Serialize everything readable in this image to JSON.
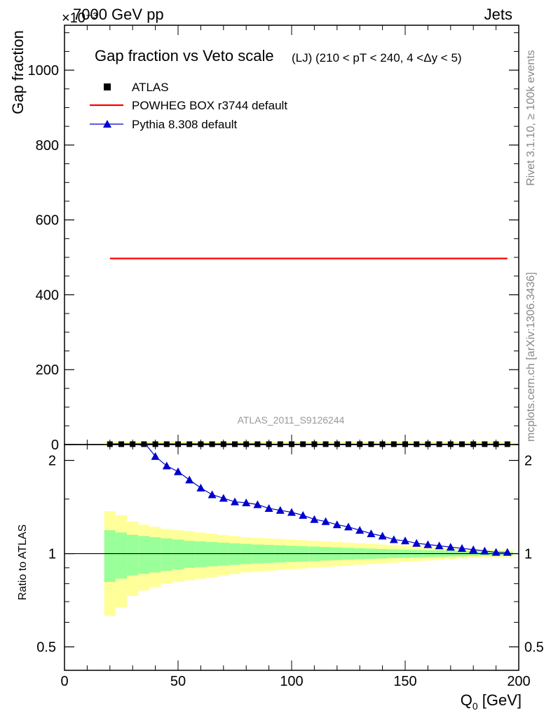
{
  "header": {
    "energy_label": "7000 GeV pp",
    "exponent_label": "×10⁻³",
    "process_label": "Jets",
    "side_rivet": "Rivet 3.1.10, ≥ 100k events",
    "side_mcplots": "mcplots.cern.ch [arXiv:1306.3436]",
    "analysis_id": "ATLAS_2011_S9126244"
  },
  "chart_data": [
    {
      "type": "line",
      "title": "Gap fraction vs Veto scale",
      "subtitle": "(LJ) (210 < pT < 240, 4 <Δy < 5)",
      "xlabel": "",
      "ylabel": "Gap fraction",
      "xlim": [
        0,
        200
      ],
      "ylim": [
        0,
        1120
      ],
      "y_scale_note": "×10⁻³",
      "yticks": [
        0,
        200,
        400,
        600,
        800,
        1000
      ],
      "legend_placement": "top-left",
      "series": [
        {
          "name": "ATLAS",
          "style": "markers",
          "color": "#000000",
          "x": [
            20,
            25,
            30,
            35,
            40,
            45,
            50,
            55,
            60,
            65,
            70,
            75,
            80,
            85,
            90,
            95,
            100,
            105,
            110,
            115,
            120,
            125,
            130,
            135,
            140,
            145,
            150,
            155,
            160,
            165,
            170,
            175,
            180,
            185,
            190,
            195
          ],
          "y": [
            1,
            1,
            1,
            1,
            1,
            1,
            1,
            1,
            1,
            1,
            1,
            1,
            1,
            1,
            1,
            1,
            1,
            1,
            1,
            1,
            1,
            1,
            1,
            1,
            1,
            1,
            1,
            1,
            1,
            1,
            1,
            1,
            1,
            1,
            1,
            1
          ]
        },
        {
          "name": "POWHEG BOX r3744 default",
          "style": "line",
          "color": "#ff0000",
          "x": [
            20,
            195
          ],
          "y": [
            497,
            497
          ]
        },
        {
          "name": "Pythia 8.308 default",
          "style": "line-triangles",
          "color": "#0000cc",
          "x": [
            20,
            25,
            30,
            35,
            40,
            45,
            50,
            55,
            60,
            65,
            70,
            75,
            80,
            85,
            90,
            95,
            100,
            105,
            110,
            115,
            120,
            125,
            130,
            135,
            140,
            145,
            150,
            155,
            160,
            165,
            170,
            175,
            180,
            185,
            190,
            195
          ],
          "y": [
            2,
            2,
            2,
            2,
            2,
            2,
            2,
            2,
            2,
            2,
            2,
            2,
            2,
            2,
            1,
            1,
            1,
            1,
            1,
            1,
            1,
            1,
            1,
            1,
            1,
            1,
            1,
            1,
            1,
            1,
            1,
            1,
            1,
            1,
            1,
            1
          ]
        }
      ]
    },
    {
      "type": "line",
      "title": "",
      "xlabel": "Q",
      "xlabel_sub": "0",
      "xlabel_unit": " [GeV]",
      "ylabel": "Ratio to ATLAS",
      "xlim": [
        0,
        200
      ],
      "ylim": [
        0.42,
        2.25
      ],
      "y_scale": "log",
      "xticks": [
        0,
        50,
        100,
        150,
        200
      ],
      "yticks": [
        0.5,
        1,
        2
      ],
      "reference_line": 1,
      "bands": {
        "x_edges": [
          17.5,
          22.5,
          27.5,
          32.5,
          37.5,
          42.5,
          47.5,
          52.5,
          57.5,
          62.5,
          67.5,
          72.5,
          77.5,
          82.5,
          87.5,
          92.5,
          97.5,
          102.5,
          107.5,
          112.5,
          117.5,
          122.5,
          127.5,
          132.5,
          137.5,
          142.5,
          147.5,
          152.5,
          157.5,
          162.5,
          167.5,
          172.5,
          177.5,
          182.5,
          187.5,
          192.5,
          197.5
        ],
        "green_half_width": [
          0.19,
          0.17,
          0.15,
          0.14,
          0.13,
          0.12,
          0.11,
          0.1,
          0.095,
          0.09,
          0.085,
          0.08,
          0.075,
          0.07,
          0.067,
          0.064,
          0.06,
          0.057,
          0.054,
          0.05,
          0.047,
          0.044,
          0.041,
          0.038,
          0.035,
          0.032,
          0.03,
          0.028,
          0.026,
          0.024,
          0.022,
          0.02,
          0.018,
          0.016,
          0.014,
          0.012
        ],
        "yellow_half_width": [
          0.37,
          0.33,
          0.27,
          0.24,
          0.22,
          0.2,
          0.19,
          0.18,
          0.17,
          0.16,
          0.15,
          0.14,
          0.13,
          0.125,
          0.12,
          0.115,
          0.11,
          0.105,
          0.1,
          0.095,
          0.09,
          0.085,
          0.08,
          0.075,
          0.07,
          0.065,
          0.06,
          0.055,
          0.05,
          0.045,
          0.04,
          0.035,
          0.032,
          0.03,
          0.028,
          0.026
        ],
        "green_color": "#99ff99",
        "yellow_color": "#ffff99"
      },
      "series": [
        {
          "name": "Pythia 8.308 default",
          "style": "line-triangles",
          "color": "#0000cc",
          "x": [
            35,
            40,
            45,
            50,
            55,
            60,
            65,
            70,
            75,
            80,
            85,
            90,
            95,
            100,
            105,
            110,
            115,
            120,
            125,
            130,
            135,
            140,
            145,
            150,
            155,
            160,
            165,
            170,
            175,
            180,
            185,
            190,
            195
          ],
          "y": [
            2.29,
            2.06,
            1.92,
            1.84,
            1.73,
            1.63,
            1.55,
            1.51,
            1.47,
            1.46,
            1.44,
            1.4,
            1.38,
            1.36,
            1.33,
            1.29,
            1.27,
            1.24,
            1.22,
            1.19,
            1.16,
            1.14,
            1.11,
            1.1,
            1.08,
            1.07,
            1.06,
            1.05,
            1.04,
            1.03,
            1.02,
            1.01,
            1.01
          ]
        }
      ]
    }
  ]
}
